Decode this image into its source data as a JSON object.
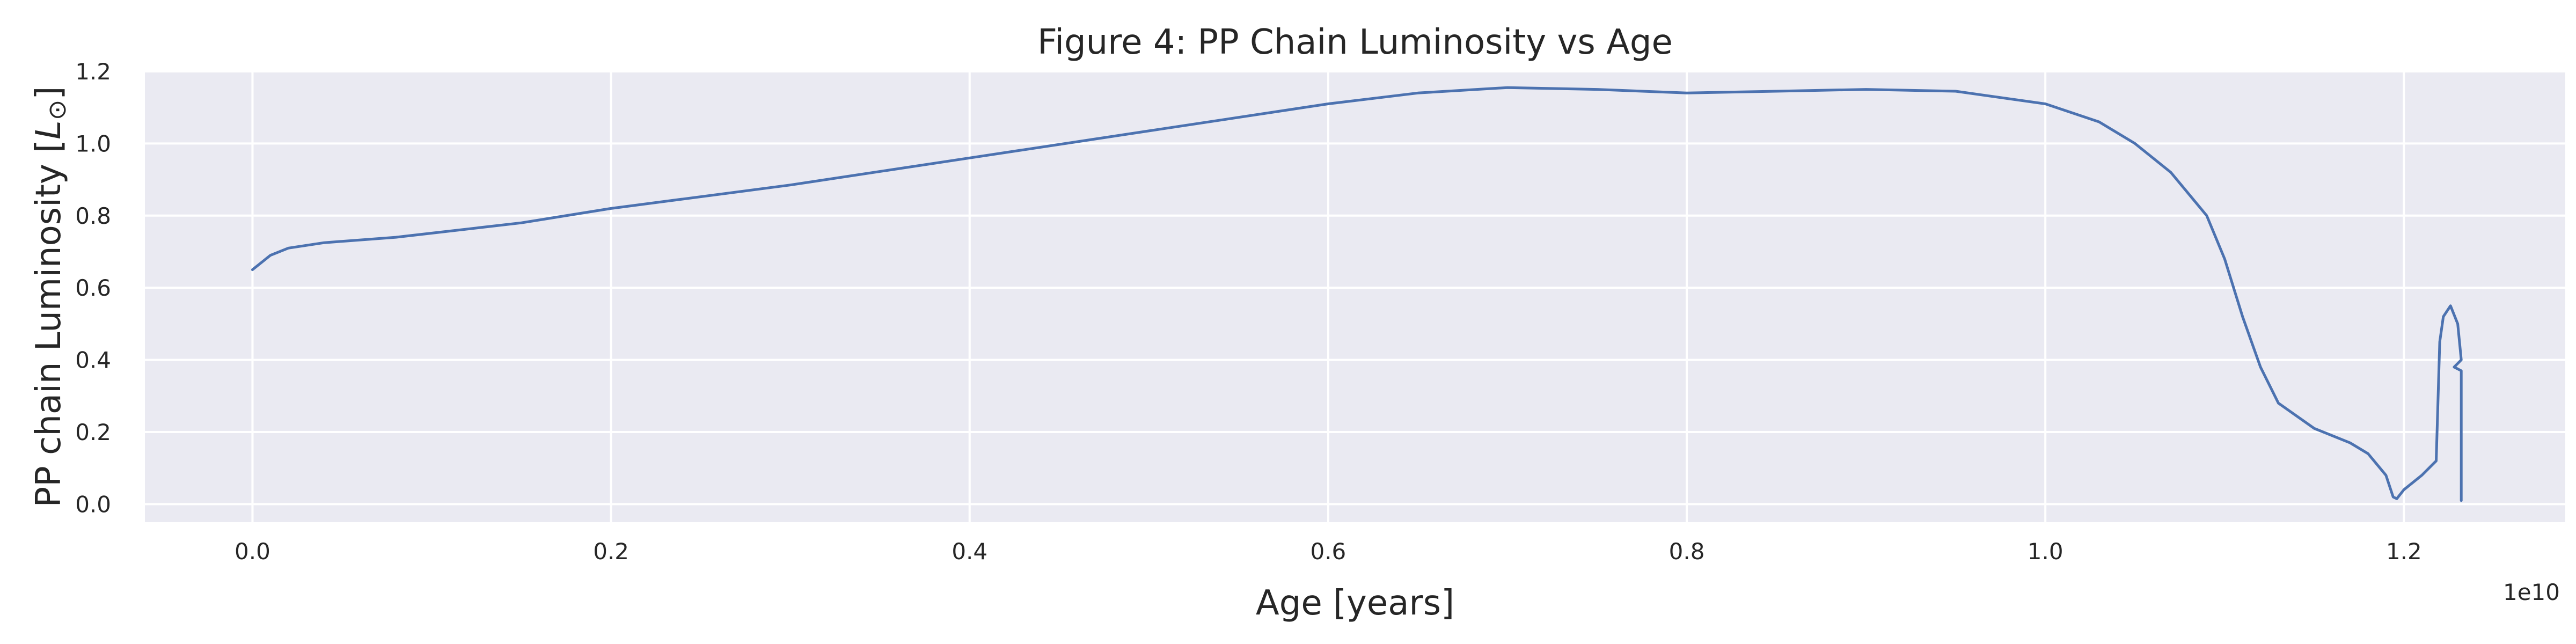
{
  "chart_data": {
    "type": "line",
    "title": "Figure 4: PP Chain Luminosity vs Age",
    "xlabel": "Age [years]",
    "ylabel": "PP chain Luminosity [",
    "ylabel_unit": "L",
    "ylabel_sub": "⊙",
    "ylabel_end": "]",
    "x_offset_label": "1e10",
    "xlim": [
      -0.06,
      1.29
    ],
    "ylim": [
      -0.05,
      1.2
    ],
    "x_ticks": [
      0.0,
      0.2,
      0.4,
      0.6,
      0.8,
      1.0,
      1.2
    ],
    "x_tick_labels": [
      "0.0",
      "0.2",
      "0.4",
      "0.6",
      "0.8",
      "1.0",
      "1.2"
    ],
    "y_ticks": [
      0.0,
      0.2,
      0.4,
      0.6,
      0.8,
      1.0,
      1.2
    ],
    "y_tick_labels": [
      "0.0",
      "0.2",
      "0.4",
      "0.6",
      "0.8",
      "1.0",
      "1.2"
    ],
    "grid": true,
    "colors": {
      "background": "#EAEAF2",
      "grid": "#FFFFFF",
      "line": "#4C72B0"
    },
    "series": [
      {
        "x": [
          0.0,
          0.005,
          0.01,
          0.02,
          0.04,
          0.08,
          0.15,
          0.2,
          0.3,
          0.4,
          0.5,
          0.6,
          0.65,
          0.7,
          0.75,
          0.8,
          0.85,
          0.9,
          0.95,
          1.0,
          1.03,
          1.05,
          1.07,
          1.09,
          1.1,
          1.11,
          1.12,
          1.13,
          1.15,
          1.17,
          1.18,
          1.19,
          1.192,
          1.194,
          1.196,
          1.2,
          1.21,
          1.218,
          1.22,
          1.222,
          1.226,
          1.23,
          1.232,
          1.228,
          1.232,
          1.232
        ],
        "y": [
          0.65,
          0.67,
          0.69,
          0.71,
          0.725,
          0.74,
          0.78,
          0.82,
          0.885,
          0.96,
          1.035,
          1.11,
          1.14,
          1.155,
          1.15,
          1.14,
          1.145,
          1.15,
          1.145,
          1.11,
          1.06,
          1.0,
          0.92,
          0.8,
          0.68,
          0.52,
          0.38,
          0.28,
          0.21,
          0.17,
          0.14,
          0.08,
          0.05,
          0.02,
          0.015,
          0.04,
          0.08,
          0.12,
          0.45,
          0.52,
          0.55,
          0.5,
          0.4,
          0.38,
          0.37,
          0.01
        ]
      }
    ]
  }
}
